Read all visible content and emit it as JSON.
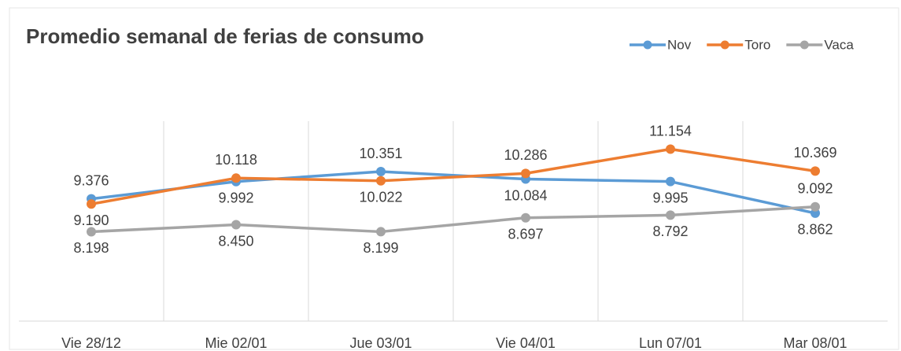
{
  "chart_data": {
    "type": "line",
    "title": "Promedio semanal de ferias de consumo",
    "categories": [
      "Vie 28/12",
      "Mie 02/01",
      "Jue 03/01",
      "Vie 04/01",
      "Lun 07/01",
      "Mar 08/01"
    ],
    "series": [
      {
        "name": "Nov",
        "color": "#5b9bd5",
        "values": [
          9.376,
          9.992,
          10.351,
          10.084,
          9.995,
          8.862
        ],
        "value_labels": [
          "9.376",
          "9.992",
          "10.351",
          "10.084",
          "9.995",
          "8.862"
        ]
      },
      {
        "name": "Toro",
        "color": "#ed7d31",
        "values": [
          9.19,
          10.118,
          10.022,
          10.286,
          11.154,
          10.369
        ],
        "value_labels": [
          "9.190",
          "10.118",
          "10.022",
          "10.286",
          "11.154",
          "10.369"
        ]
      },
      {
        "name": "Vaca",
        "color": "#a5a5a5",
        "values": [
          8.198,
          8.45,
          8.199,
          8.697,
          8.792,
          9.092
        ],
        "value_labels": [
          "8.198",
          "8.450",
          "8.199",
          "8.697",
          "8.792",
          "9.092"
        ]
      }
    ],
    "ylim": [
      5,
      13
    ],
    "legend": "top-right"
  }
}
